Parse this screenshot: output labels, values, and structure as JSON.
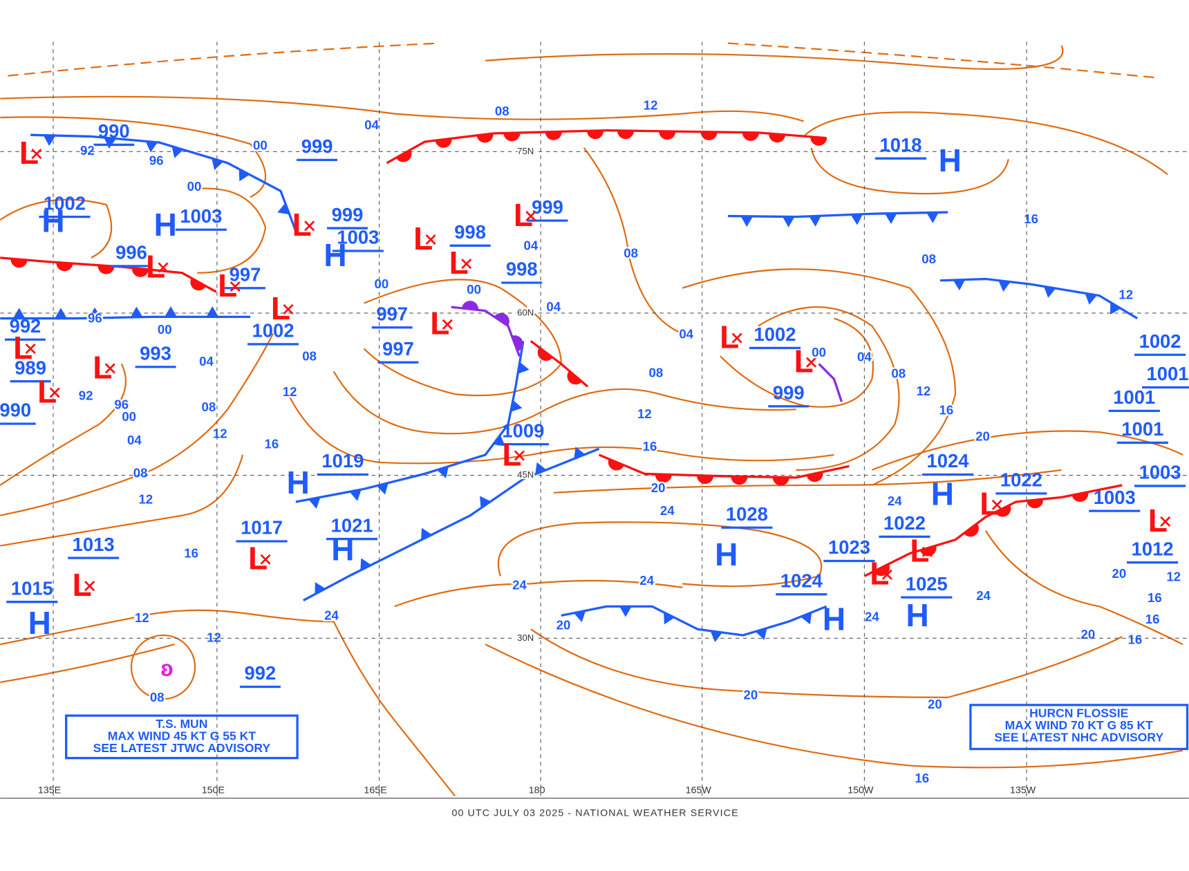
{
  "footer": "00 UTC JULY 03 2025 - NATIONAL WEATHER SERVICE",
  "longitudes": [
    "135E",
    "150E",
    "165E",
    "180",
    "165W",
    "150W",
    "135W"
  ],
  "latitudes": [
    "75N",
    "60N",
    "45N",
    "30N"
  ],
  "centers": [
    {
      "value": 990,
      "letter": "L"
    },
    {
      "value": 999
    },
    {
      "value": 1002,
      "letter": "H"
    },
    {
      "value": 1003,
      "letter": "H"
    },
    {
      "value": 996,
      "letter": "L"
    },
    {
      "value": 999,
      "letter": "L"
    },
    {
      "value": 1003,
      "letter": "H"
    },
    {
      "value": 997,
      "letter": "L"
    },
    {
      "value": 998,
      "letter": "L"
    },
    {
      "value": 999,
      "letter": "L"
    },
    {
      "value": 998,
      "letter": "L"
    },
    {
      "value": 1002,
      "letter": "L"
    },
    {
      "value": 992,
      "letter": "L"
    },
    {
      "value": 993
    },
    {
      "value": 989,
      "letter": "L"
    },
    {
      "value": 990,
      "letter": "L"
    },
    {
      "value": 997,
      "letter": "L"
    },
    {
      "value": 997
    },
    {
      "value": 1009,
      "letter": "L"
    },
    {
      "value": 1019,
      "letter": "H"
    },
    {
      "value": 1017,
      "letter": "L"
    },
    {
      "value": 1021,
      "letter": "H"
    },
    {
      "value": 1013,
      "letter": "L"
    },
    {
      "value": 1015,
      "letter": "H"
    },
    {
      "value": 992
    },
    {
      "value": 1018,
      "letter": "H"
    },
    {
      "value": 1002,
      "letter": "L"
    },
    {
      "value": 999,
      "letter": "L"
    },
    {
      "value": 1024,
      "letter": "H"
    },
    {
      "value": 1022,
      "letter": "L"
    },
    {
      "value": 1028,
      "letter": "H"
    },
    {
      "value": 1022,
      "letter": "L"
    },
    {
      "value": 1023,
      "letter": "L"
    },
    {
      "value": 1024,
      "letter": "H"
    },
    {
      "value": 1025,
      "letter": "H"
    },
    {
      "value": 1003,
      "letter": "L"
    },
    {
      "value": 1002
    },
    {
      "value": 1001
    },
    {
      "value": 1001
    },
    {
      "value": 1001
    },
    {
      "value": 1003
    },
    {
      "value": 1012
    }
  ],
  "isobar_labels": [
    "08",
    "12",
    "04",
    "00",
    "96",
    "92",
    "00",
    "04",
    "08",
    "00",
    "04",
    "00",
    "96",
    "00",
    "04",
    "08",
    "04",
    "08",
    "12",
    "16",
    "20",
    "24",
    "24",
    "24",
    "24",
    "20",
    "20",
    "20",
    "16",
    "12",
    "08",
    "12",
    "16",
    "08",
    "12",
    "16",
    "12",
    "12",
    "08",
    "04",
    "92",
    "96",
    "00",
    "04",
    "08",
    "12",
    "16",
    "20",
    "24",
    "24",
    "24",
    "00",
    "08",
    "16",
    "12",
    "20",
    "16",
    "16",
    "16",
    "20",
    "12"
  ],
  "advisories": [
    {
      "lines": [
        "T.S. MUN",
        "MAX WIND 45 KT G 55 KT",
        "SEE LATEST JTWC ADVISORY"
      ]
    },
    {
      "lines": [
        "HURCN FLOSSIE",
        "MAX WIND 70 KT G 85 KT",
        "SEE LATEST NHC ADVISORY"
      ]
    }
  ]
}
